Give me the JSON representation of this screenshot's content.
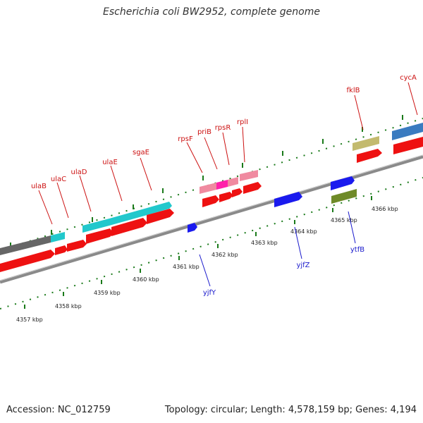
{
  "title": "Escherichia coli BW2952, complete genome",
  "footer": {
    "accession": "Accession: NC_012759",
    "summary": "Topology: circular; Length: 4,578,159 bp; Genes: 4,194"
  },
  "colors": {
    "background": "#ffffff",
    "backbone": "#8a8a8a",
    "tick": "#1a7a1a",
    "cds": "#ee1111",
    "label_top": "#cc1111",
    "label_bottom": "#1a1acc"
  },
  "ruler_labels": [
    "4357 kbp",
    "4358 kbp",
    "4359 kbp",
    "4360 kbp",
    "4361 kbp",
    "4362 kbp",
    "4363 kbp",
    "4364 kbp",
    "4365 kbp",
    "4366 kbp"
  ],
  "gene_labels_top": [
    "ulaB",
    "ulaC",
    "ulaD",
    "ulaE",
    "sgaE",
    "rpsF",
    "priB",
    "rpsR",
    "rplI",
    "fklB",
    "cycA"
  ],
  "gene_labels_bottom": [
    "yjfY",
    "yjfZ",
    "ytfB"
  ]
}
